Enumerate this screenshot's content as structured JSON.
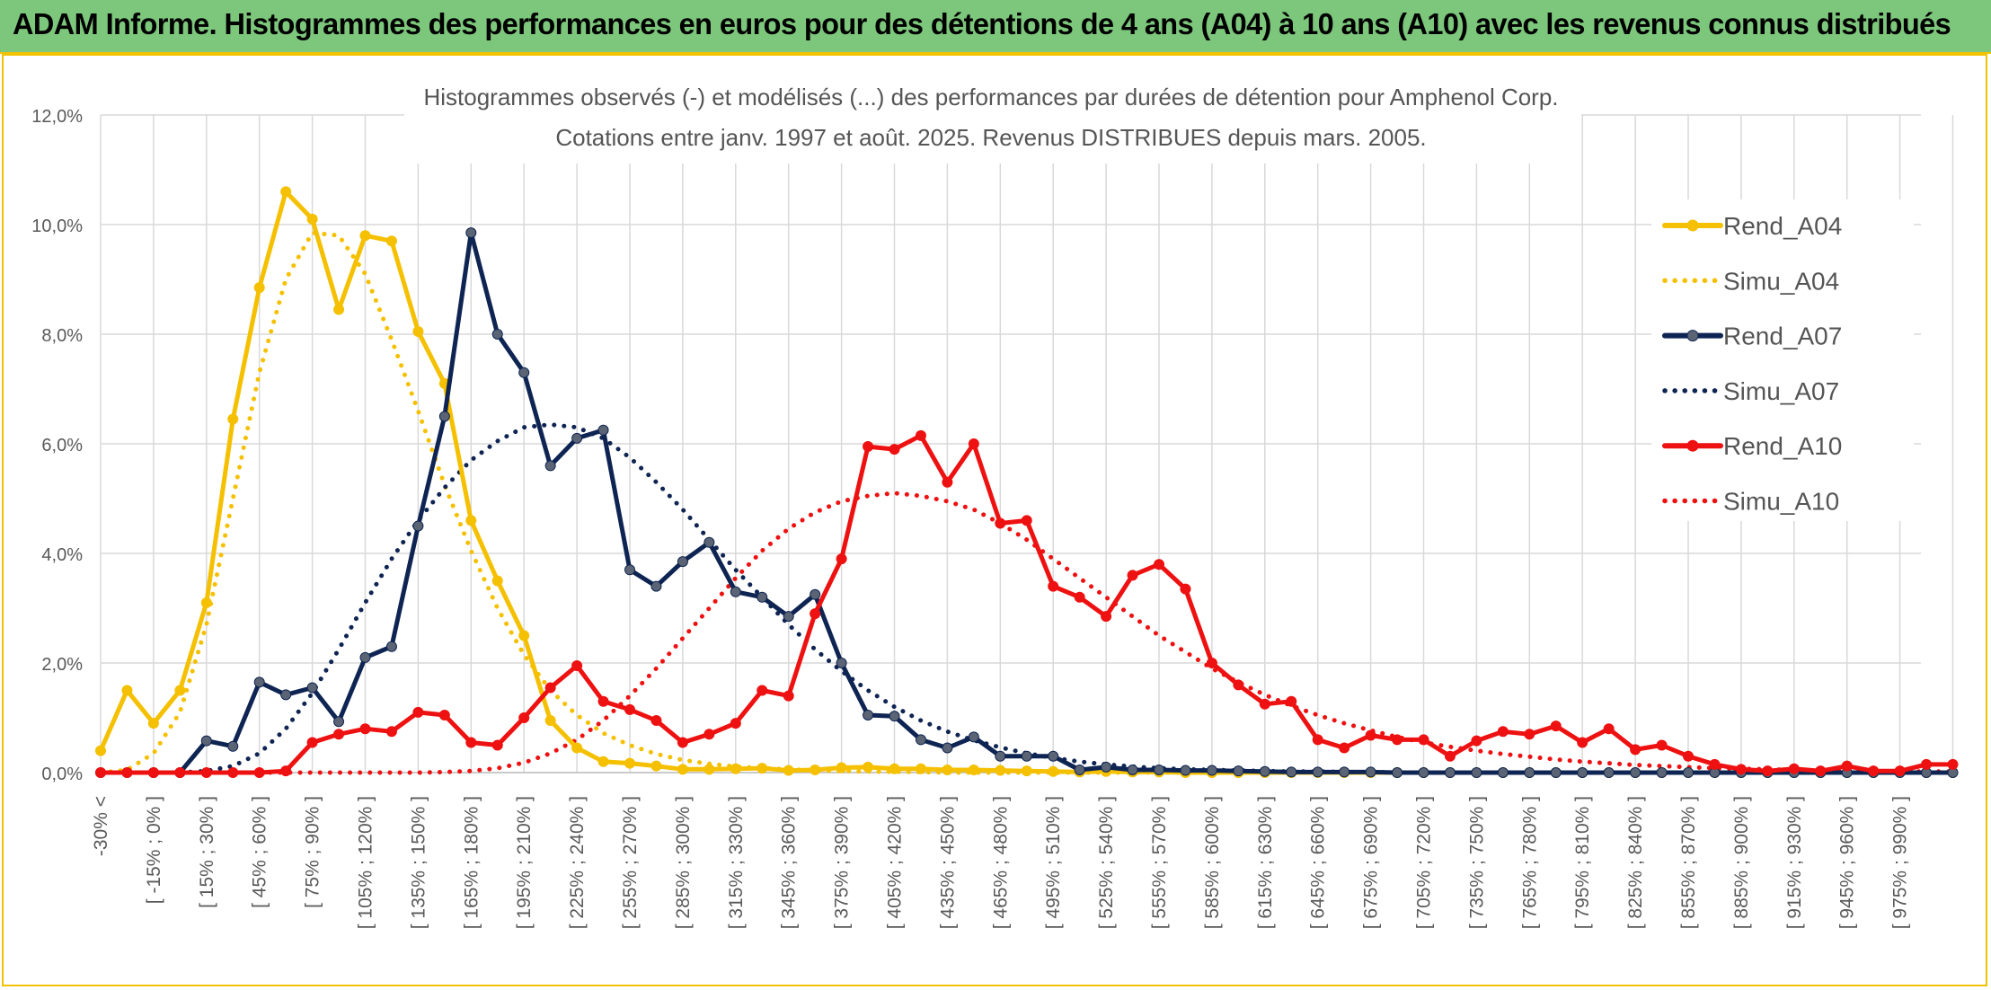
{
  "banner": {
    "title": "ADAM Informe. Histogrammes des performances en euros pour des détentions de 4 ans (A04) à 10 ans (A10) avec les revenus connus distribués"
  },
  "chart_data": {
    "type": "line",
    "title": "Histogrammes observés (-) et modélisés (...) des performances par durées de détention pour Amphenol Corp.",
    "subtitle": "Cotations entre janv. 1997 et août. 2025. Revenus DISTRIBUES depuis mars. 2005.",
    "ylim": [
      0,
      12
    ],
    "ytick_labels": [
      "0,0%",
      "2,0%",
      "4,0%",
      "6,0%",
      "8,0%",
      "10,0%",
      "12,0%"
    ],
    "grid": true,
    "legend_position": "right",
    "categories": [
      "-30% <",
      "[ -30% ; -15% ]",
      "[ -15% ; 0% ]",
      "[ 0% ; 15% ]",
      "[ 15% ; 30% ]",
      "[ 30% ; 45% ]",
      "[ 45% ; 60% ]",
      "[ 60% ; 75% ]",
      "[ 75% ; 90% ]",
      "[ 90% ; 105% ]",
      "[ 105% ; 120% ]",
      "[ 120% ; 135% ]",
      "[ 135% ; 150% ]",
      "[ 150% ; 165% ]",
      "[ 165% ; 180% ]",
      "[ 180% ; 195% ]",
      "[ 195% ; 210% ]",
      "[ 210% ; 225% ]",
      "[ 225% ; 240% ]",
      "[ 240% ; 255% ]",
      "[ 255% ; 270% ]",
      "[ 270% ; 285% ]",
      "[ 285% ; 300% ]",
      "[ 300% ; 315% ]",
      "[ 315% ; 330% ]",
      "[ 330% ; 345% ]",
      "[ 345% ; 360% ]",
      "[ 360% ; 375% ]",
      "[ 375% ; 390% ]",
      "[ 390% ; 405% ]",
      "[ 405% ; 420% ]",
      "[ 420% ; 435% ]",
      "[ 435% ; 450% ]",
      "[ 450% ; 465% ]",
      "[ 465% ; 480% ]",
      "[ 480% ; 495% ]",
      "[ 495% ; 510% ]",
      "[ 510% ; 525% ]",
      "[ 525% ; 540% ]",
      "[ 540% ; 555% ]",
      "[ 555% ; 570% ]",
      "[ 570% ; 585% ]",
      "[ 585% ; 600% ]",
      "[ 600% ; 615% ]",
      "[ 615% ; 630% ]",
      "[ 630% ; 645% ]",
      "[ 645% ; 660% ]",
      "[ 660% ; 675% ]",
      "[ 675% ; 690% ]",
      "[ 690% ; 705% ]",
      "[ 705% ; 720% ]",
      "[ 720% ; 735% ]",
      "[ 735% ; 750% ]",
      "[ 750% ; 765% ]",
      "[ 765% ; 780% ]",
      "[ 780% ; 795% ]",
      "[ 795% ; 810% ]",
      "[ 810% ; 825% ]",
      "[ 825% ; 840% ]",
      "[ 840% ; 855% ]",
      "[ 855% ; 870% ]",
      "[ 870% ; 885% ]",
      "[ 885% ; 900% ]",
      "[ 900% ; 915% ]",
      "[ 915% ; 930% ]",
      "[ 930% ; 945% ]",
      "[ 945% ; 960% ]",
      "[ 960% ; 975% ]",
      "[ 975% ; 990% ]",
      "[ 990% ; 1005% ]",
      "1005% >"
    ],
    "visible_tick_labels": [
      "-30% <",
      "[ -15% ; 0% ]",
      "[ 15% ; 30% ]",
      "[ 45% ; 60% ]",
      "[ 75% ; 90% ]",
      "[ 105% ; 120% ]",
      "[ 135% ; 150% ]",
      "[ 165% ; 180% ]",
      "[ 195% ; 210% ]",
      "[ 225% ; 240% ]",
      "[ 255% ; 270% ]",
      "[ 285% ; 300% ]",
      "[ 315% ; 330% ]",
      "[ 345% ; 360% ]",
      "[ 375% ; 390% ]",
      "[ 405% ; 420% ]",
      "[ 435% ; 450% ]",
      "[ 465% ; 480% ]",
      "[ 495% ; 510% ]",
      "[ 525% ; 540% ]",
      "[ 555% ; 570% ]",
      "[ 585% ; 600% ]",
      "[ 615% ; 630% ]",
      "[ 645% ; 660% ]",
      "[ 675% ; 690% ]",
      "[ 705% ; 720% ]",
      "[ 735% ; 750% ]",
      "[ 765% ; 780% ]",
      "[ 795% ; 810% ]",
      "[ 825% ; 840% ]",
      "[ 855% ; 870% ]",
      "[ 885% ; 900% ]",
      "[ 915% ; 930% ]",
      "[ 945% ; 960% ]",
      "[ 975% ; 990% ]"
    ],
    "series": [
      {
        "name": "Rend_A04",
        "style": "solid",
        "markers": true,
        "color": "#f5c000",
        "values": [
          0.4,
          1.5,
          0.9,
          1.5,
          3.1,
          6.45,
          8.85,
          10.6,
          10.1,
          8.45,
          9.8,
          9.7,
          8.05,
          7.1,
          4.6,
          3.5,
          2.5,
          0.95,
          0.45,
          0.2,
          0.17,
          0.12,
          0.06,
          0.06,
          0.07,
          0.08,
          0.04,
          0.05,
          0.09,
          0.1,
          0.07,
          0.07,
          0.05,
          0.05,
          0.04,
          0.03,
          0.02,
          0.01,
          0.02,
          0.01,
          0.01,
          0,
          0,
          0,
          0,
          0,
          0,
          0,
          0,
          0,
          0,
          0,
          0,
          0,
          0,
          0,
          0,
          0,
          0,
          0,
          0,
          0,
          0,
          0,
          0,
          0,
          0,
          0,
          0,
          0,
          0
        ]
      },
      {
        "name": "Simu_A04",
        "style": "dotted",
        "markers": false,
        "color": "#f5c000",
        "values": [
          0,
          0.05,
          0.35,
          1.1,
          2.7,
          5.0,
          7.3,
          9.0,
          9.85,
          9.8,
          9.1,
          7.9,
          6.6,
          5.25,
          4.05,
          3.0,
          2.15,
          1.5,
          1.05,
          0.72,
          0.5,
          0.34,
          0.23,
          0.16,
          0.11,
          0.08,
          0.06,
          0.04,
          0.03,
          0.02,
          0.015,
          0.01,
          0,
          0,
          0,
          0,
          0,
          0,
          0,
          0,
          0,
          0,
          0,
          0,
          0,
          0,
          0,
          0,
          0,
          0,
          0,
          0,
          0,
          0,
          0,
          0,
          0,
          0,
          0,
          0,
          0,
          0,
          0,
          0,
          0,
          0,
          0,
          0,
          0,
          0,
          0
        ]
      },
      {
        "name": "Rend_A07",
        "style": "solid",
        "markers": true,
        "color": "#0e2452",
        "values": [
          0,
          0,
          0,
          0,
          0.58,
          0.48,
          1.65,
          1.42,
          1.55,
          0.93,
          2.1,
          2.3,
          4.5,
          6.5,
          9.85,
          8.0,
          7.3,
          5.6,
          6.1,
          6.25,
          3.7,
          3.4,
          3.85,
          4.2,
          3.3,
          3.2,
          2.85,
          3.25,
          2.0,
          1.05,
          1.03,
          0.6,
          0.45,
          0.65,
          0.3,
          0.3,
          0.3,
          0.05,
          0.1,
          0.05,
          0.05,
          0.04,
          0.04,
          0.03,
          0.02,
          0.01,
          0.01,
          0.01,
          0.01,
          0,
          0,
          0,
          0,
          0,
          0,
          0,
          0,
          0,
          0,
          0,
          0,
          0,
          0,
          0,
          0,
          0,
          0,
          0,
          0,
          0,
          0
        ]
      },
      {
        "name": "Simu_A07",
        "style": "dotted",
        "markers": false,
        "color": "#0e2452",
        "values": [
          0,
          0,
          0,
          0,
          0.03,
          0.12,
          0.35,
          0.8,
          1.45,
          2.25,
          3.1,
          3.9,
          4.6,
          5.2,
          5.7,
          6.05,
          6.3,
          6.35,
          6.3,
          6.1,
          5.75,
          5.3,
          4.8,
          4.25,
          3.7,
          3.2,
          2.7,
          2.25,
          1.85,
          1.5,
          1.2,
          0.95,
          0.75,
          0.59,
          0.46,
          0.35,
          0.27,
          0.2,
          0.15,
          0.11,
          0.08,
          0.06,
          0.05,
          0.04,
          0.03,
          0.02,
          0.02,
          0.01,
          0.01,
          0,
          0,
          0,
          0,
          0,
          0,
          0,
          0,
          0,
          0,
          0,
          0,
          0,
          0,
          0,
          0,
          0,
          0,
          0,
          0,
          0,
          0
        ]
      },
      {
        "name": "Rend_A10",
        "style": "solid",
        "markers": true,
        "color": "#ee1111",
        "values": [
          0,
          0,
          0,
          0,
          0,
          0,
          0,
          0.03,
          0.55,
          0.7,
          0.8,
          0.75,
          1.1,
          1.05,
          0.55,
          0.5,
          1.0,
          1.55,
          1.95,
          1.3,
          1.15,
          0.95,
          0.55,
          0.7,
          0.9,
          1.5,
          1.4,
          2.9,
          3.9,
          5.95,
          5.9,
          6.15,
          5.3,
          6.0,
          4.55,
          4.6,
          3.4,
          3.2,
          2.85,
          3.6,
          3.8,
          3.35,
          2.0,
          1.6,
          1.25,
          1.3,
          0.6,
          0.45,
          0.68,
          0.6,
          0.6,
          0.3,
          0.58,
          0.75,
          0.7,
          0.85,
          0.55,
          0.8,
          0.42,
          0.5,
          0.3,
          0.15,
          0.06,
          0.03,
          0.07,
          0.03,
          0.12,
          0.03,
          0.03,
          0.15,
          0.15
        ]
      },
      {
        "name": "Simu_A10",
        "style": "dotted",
        "markers": false,
        "color": "#ee1111",
        "values": [
          0,
          0,
          0,
          0,
          0,
          0,
          0,
          0,
          0,
          0,
          0,
          0,
          0,
          0.01,
          0.03,
          0.08,
          0.18,
          0.35,
          0.6,
          0.95,
          1.4,
          1.9,
          2.45,
          3.0,
          3.55,
          4.05,
          4.45,
          4.75,
          4.95,
          5.05,
          5.1,
          5.05,
          4.95,
          4.8,
          4.55,
          4.25,
          3.9,
          3.55,
          3.2,
          2.85,
          2.5,
          2.2,
          1.9,
          1.65,
          1.42,
          1.22,
          1.05,
          0.9,
          0.77,
          0.65,
          0.55,
          0.47,
          0.4,
          0.34,
          0.29,
          0.24,
          0.2,
          0.17,
          0.14,
          0.12,
          0.1,
          0.08,
          0.07,
          0.06,
          0.05,
          0.04,
          0.03,
          0.03,
          0.02,
          0.02,
          0.02
        ]
      }
    ]
  }
}
